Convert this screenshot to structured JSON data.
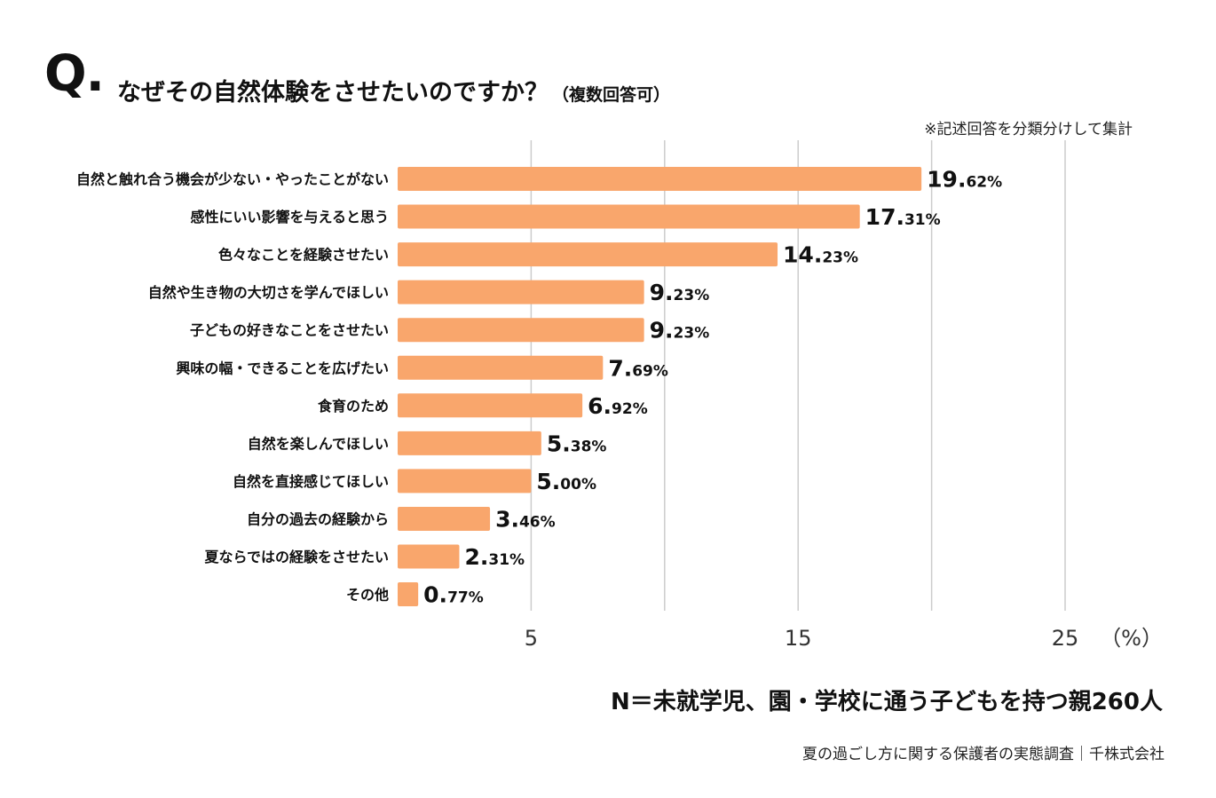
{
  "title": {
    "q_mark": "Q.",
    "text": "なぜその自然体験をさせたいのですか？",
    "sub": "（複数回答可）"
  },
  "note": "※記述回答を分類分けして集計",
  "sample_size": "N＝未就学児、園・学校に通う子どもを持つ親260人",
  "source": "夏の過ごし方に関する保護者の実態調査｜千株式会社",
  "colors": {
    "bar": "#F9A66C",
    "grid": "#cccccc"
  },
  "chart_data": {
    "type": "bar",
    "orientation": "horizontal",
    "title": "なぜその自然体験をさせたいのですか？（複数回答可）",
    "unit_label": "（%）",
    "xlim": [
      0,
      25
    ],
    "gridlines": [
      5,
      10,
      15,
      20,
      25
    ],
    "ticks": [
      "5",
      "15",
      "25"
    ],
    "categories": [
      "自然と触れ合う機会が少ない・やったことがない",
      "感性にいい影響を与えると思う",
      "色々なことを経験させたい",
      "自然や生き物の大切さを学んでほしい",
      "子どもの好きなことをさせたい",
      "興味の幅・できることを広げたい",
      "食育のため",
      "自然を楽しんでほしい",
      "自然を直接感じてほしい",
      "自分の過去の経験から",
      "夏ならではの経験をさせたい",
      "その他"
    ],
    "values": [
      19.62,
      17.31,
      14.23,
      9.23,
      9.23,
      7.69,
      6.92,
      5.38,
      5.0,
      3.46,
      2.31,
      0.77
    ],
    "value_labels_int": [
      "19.",
      "17.",
      "14.",
      "9.",
      "9.",
      "7.",
      "6.",
      "5.",
      "5.",
      "3.",
      "2.",
      "0."
    ],
    "value_labels_frac": [
      "62%",
      "31%",
      "23%",
      "23%",
      "23%",
      "69%",
      "92%",
      "38%",
      "00%",
      "46%",
      "31%",
      "77%"
    ]
  }
}
